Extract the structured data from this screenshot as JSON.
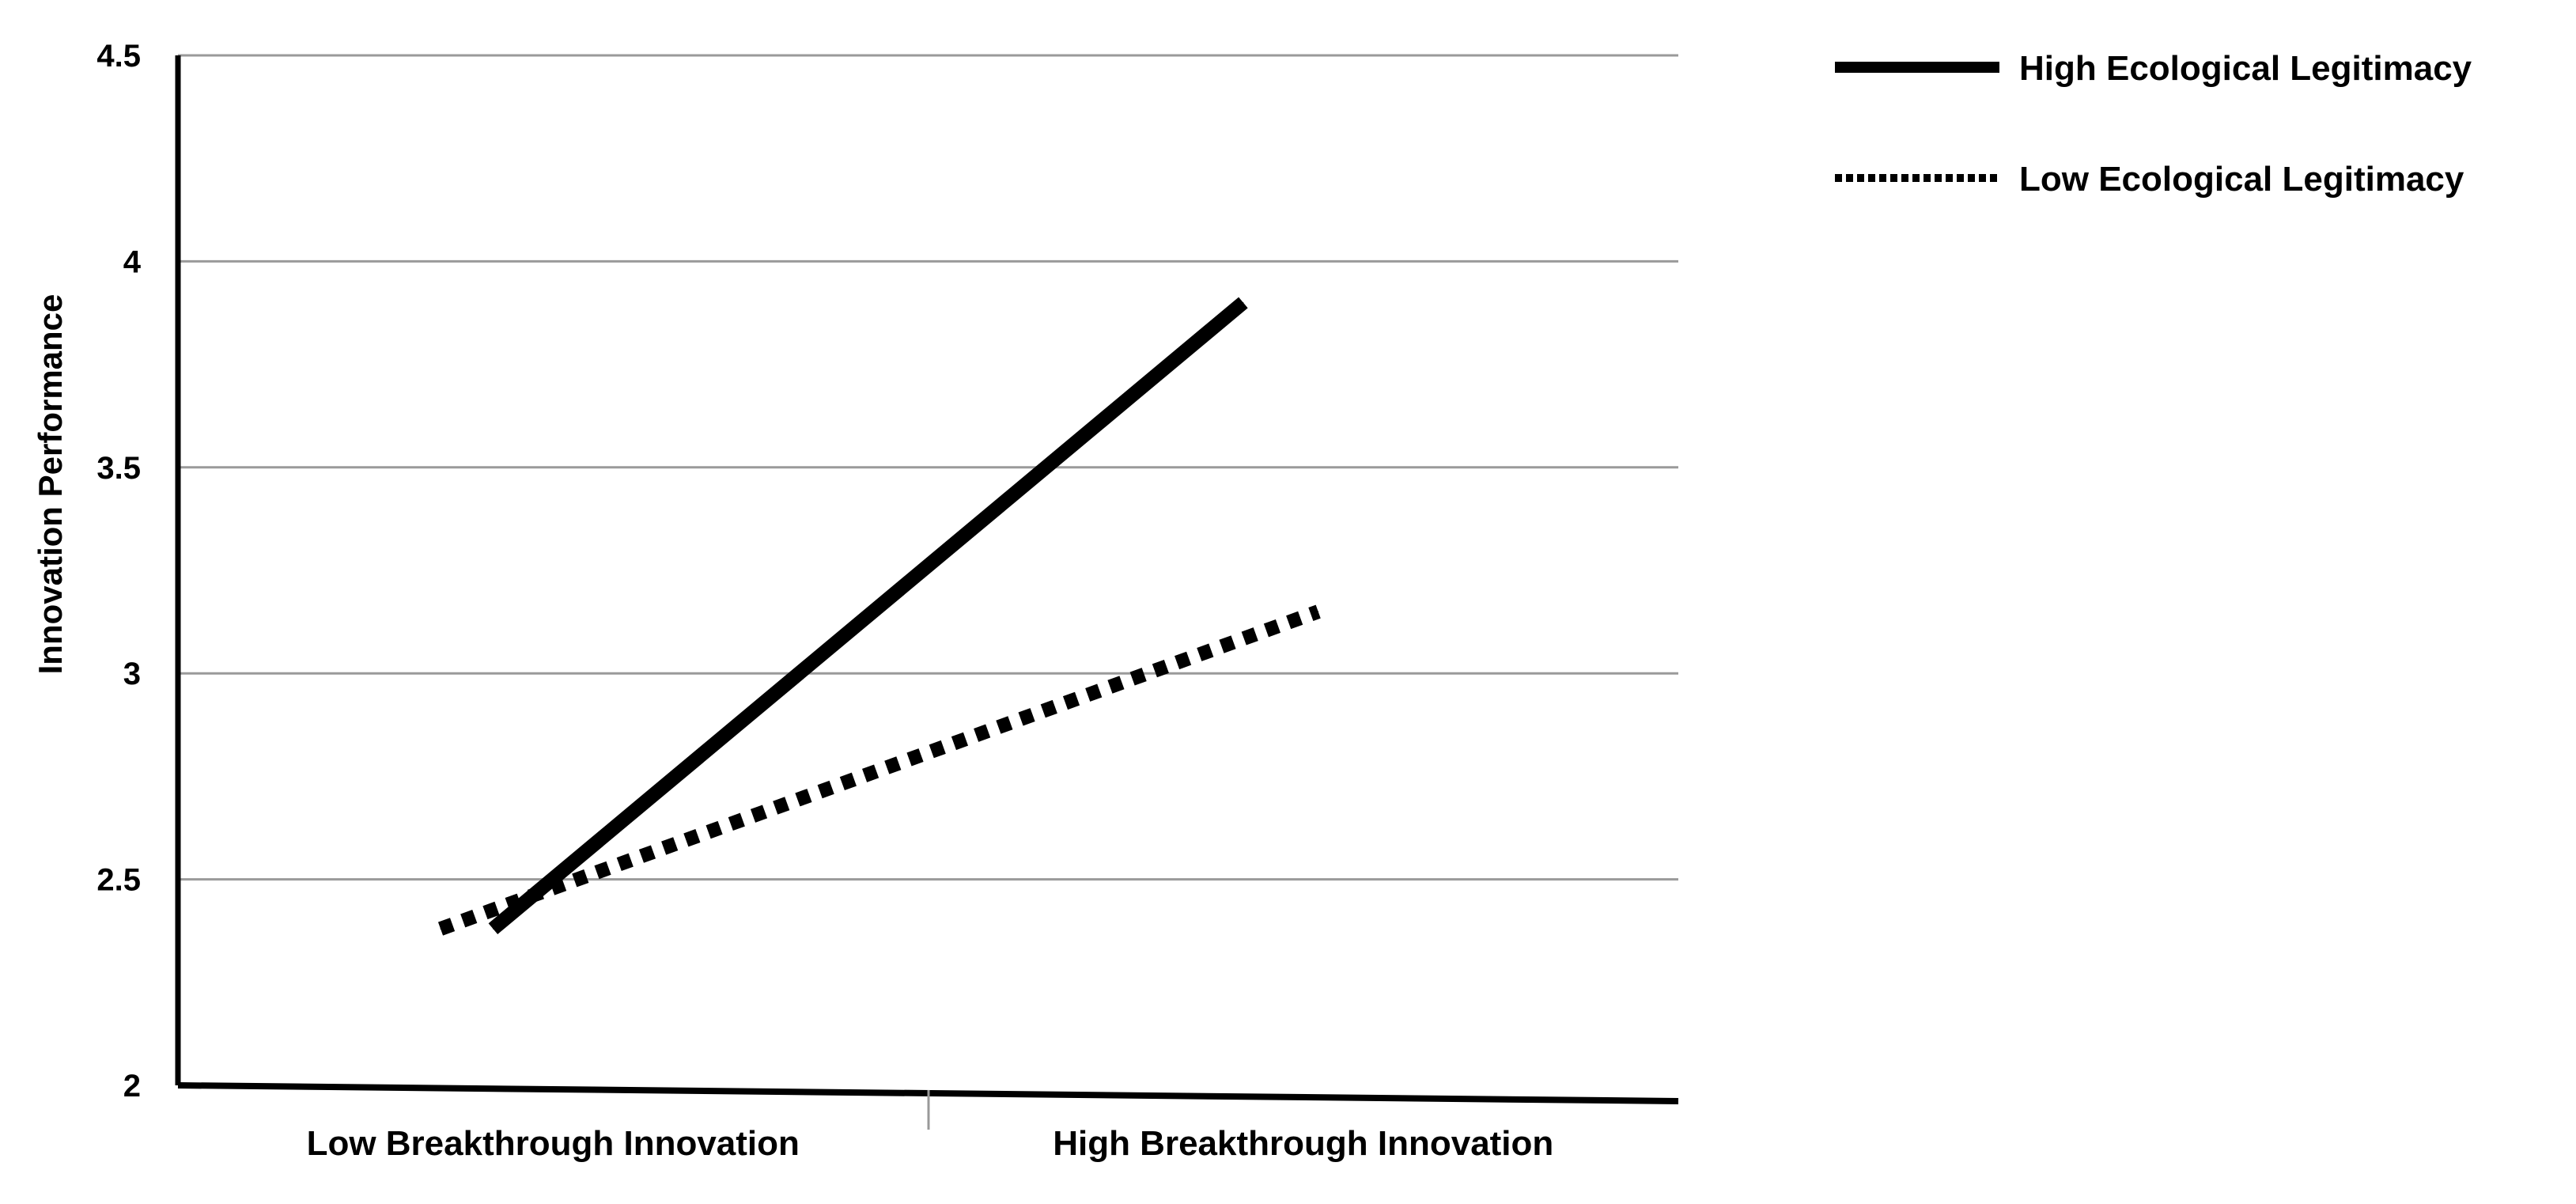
{
  "chart_data": {
    "type": "line",
    "title": "",
    "xlabel": "",
    "ylabel": "Innovation Performance",
    "categories": [
      "Low Breakthrough Innovation",
      "High Breakthrough Innovation"
    ],
    "ylim": [
      2,
      4.5
    ],
    "yticks": [
      "2",
      "2.5",
      "3",
      "3.5",
      "4",
      "4.5"
    ],
    "grid": true,
    "legend_position": "top-right",
    "series": [
      {
        "name": "High Ecological Legitimacy",
        "style": "solid",
        "color": "#000000",
        "x": [
          0.92,
          1.92
        ],
        "values": [
          2.38,
          3.9
        ]
      },
      {
        "name": "Low Ecological Legitimacy",
        "style": "dotted",
        "color": "#000000",
        "x": [
          0.85,
          2.02
        ],
        "values": [
          2.38,
          3.15
        ]
      }
    ]
  }
}
